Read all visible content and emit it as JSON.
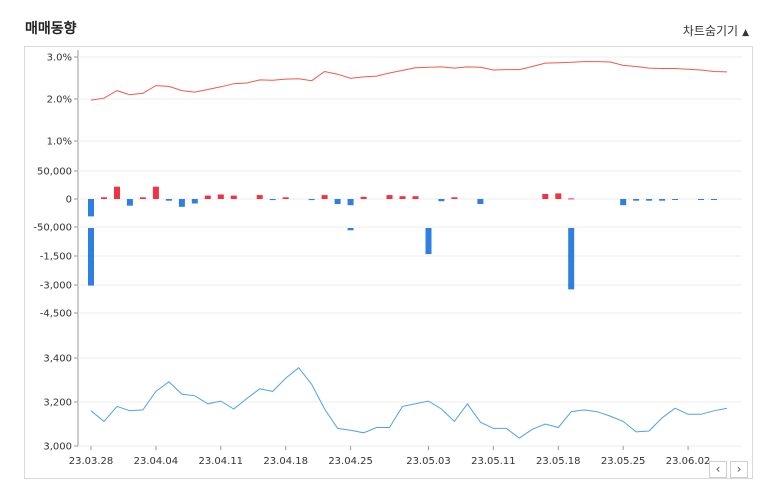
{
  "header": {
    "title": "매매동향",
    "toggle_label": "차트숨기기",
    "toggle_icon": "caret-up-icon"
  },
  "nav": {
    "prev_label": "‹",
    "next_label": "›"
  },
  "chart_data": {
    "type": "line",
    "x": [
      "23.03.28",
      "23.03.29",
      "23.03.30",
      "23.03.31",
      "23.04.03",
      "23.04.04",
      "23.04.05",
      "23.04.06",
      "23.04.07",
      "23.04.10",
      "23.04.11",
      "23.04.12",
      "23.04.13",
      "23.04.14",
      "23.04.17",
      "23.04.18",
      "23.04.19",
      "23.04.20",
      "23.04.21",
      "23.04.24",
      "23.04.25",
      "23.04.26",
      "23.04.27",
      "23.04.28",
      "23.05.01",
      "23.05.02",
      "23.05.03",
      "23.05.04",
      "23.05.08",
      "23.05.09",
      "23.05.10",
      "23.05.11",
      "23.05.12",
      "23.05.15",
      "23.05.16",
      "23.05.17",
      "23.05.18",
      "23.05.19",
      "23.05.22",
      "23.05.23",
      "23.05.24",
      "23.05.25",
      "23.05.26",
      "23.05.30",
      "23.05.31",
      "23.06.01",
      "23.06.02",
      "23.06.05",
      "23.06.07",
      "23.06.08"
    ],
    "x_ticks": [
      "23.03.28",
      "23.04.04",
      "23.04.11",
      "23.04.18",
      "23.04.25",
      "23.05.03",
      "23.05.11",
      "23.05.18",
      "23.05.25",
      "23.06.02"
    ],
    "panels": [
      {
        "name": "ratio",
        "type": "line",
        "color": "#f05a4a",
        "y_ticks": [
          "3.0%",
          "2.0%",
          "1.0%"
        ],
        "ylim": [
          0.8,
          3.0
        ],
        "values": [
          1.87,
          1.92,
          2.12,
          2.01,
          2.05,
          2.25,
          2.23,
          2.12,
          2.08,
          2.15,
          2.22,
          2.3,
          2.32,
          2.4,
          2.39,
          2.42,
          2.43,
          2.38,
          2.62,
          2.55,
          2.44,
          2.48,
          2.5,
          2.58,
          2.65,
          2.72,
          2.73,
          2.74,
          2.71,
          2.74,
          2.73,
          2.66,
          2.67,
          2.67,
          2.75,
          2.84,
          2.85,
          2.86,
          2.88,
          2.88,
          2.87,
          2.78,
          2.75,
          2.71,
          2.7,
          2.7,
          2.68,
          2.66,
          2.62,
          2.61
        ]
      },
      {
        "name": "foreign-net",
        "type": "bar",
        "up_color": "#ee3344",
        "down_color": "#2f7fe0",
        "y_ticks": [
          "50,000",
          "0",
          "-50,000"
        ],
        "ylim": [
          -50000,
          50000
        ],
        "values": [
          -31000,
          3000,
          22000,
          -12000,
          3000,
          22000,
          -3000,
          -14000,
          -8000,
          6000,
          8000,
          6000,
          0,
          7000,
          -2000,
          3000,
          0,
          -2000,
          7000,
          -9000,
          -11000,
          4000,
          0,
          7000,
          5000,
          5000,
          0,
          -4000,
          3000,
          0,
          -9000,
          0,
          0,
          0,
          0,
          9000,
          10000,
          1000,
          0,
          0,
          0,
          -11000,
          -3000,
          -3000,
          -3000,
          -1000,
          0,
          -1000,
          -1000,
          0
        ]
      },
      {
        "name": "institution-net",
        "type": "bar",
        "down_color": "#2f7fe0",
        "y_ticks": [
          "-1,500",
          "-3,000",
          "-4,500"
        ],
        "ylim": [
          -4500,
          0
        ],
        "values": [
          {
            "i": 0,
            "v": -3050
          },
          {
            "i": 20,
            "v": -120
          },
          {
            "i": 26,
            "v": -1380
          },
          {
            "i": 37,
            "v": -3250
          }
        ]
      },
      {
        "name": "price",
        "type": "line",
        "color": "#4ea3e6",
        "y_ticks": [
          "3,400",
          "3,200",
          "3,000"
        ],
        "ylim": [
          3000,
          3500
        ],
        "values": [
          3200,
          3140,
          3225,
          3200,
          3205,
          3310,
          3365,
          3295,
          3285,
          3240,
          3255,
          3210,
          3270,
          3325,
          3310,
          3385,
          3445,
          3350,
          3210,
          3100,
          3090,
          3075,
          3105,
          3105,
          3225,
          3240,
          3255,
          3210,
          3140,
          3240,
          3135,
          3100,
          3100,
          3045,
          3095,
          3125,
          3105,
          3195,
          3205,
          3195,
          3170,
          3140,
          3080,
          3085,
          3160,
          3215,
          3180,
          3180,
          3200,
          3215
        ]
      }
    ]
  }
}
